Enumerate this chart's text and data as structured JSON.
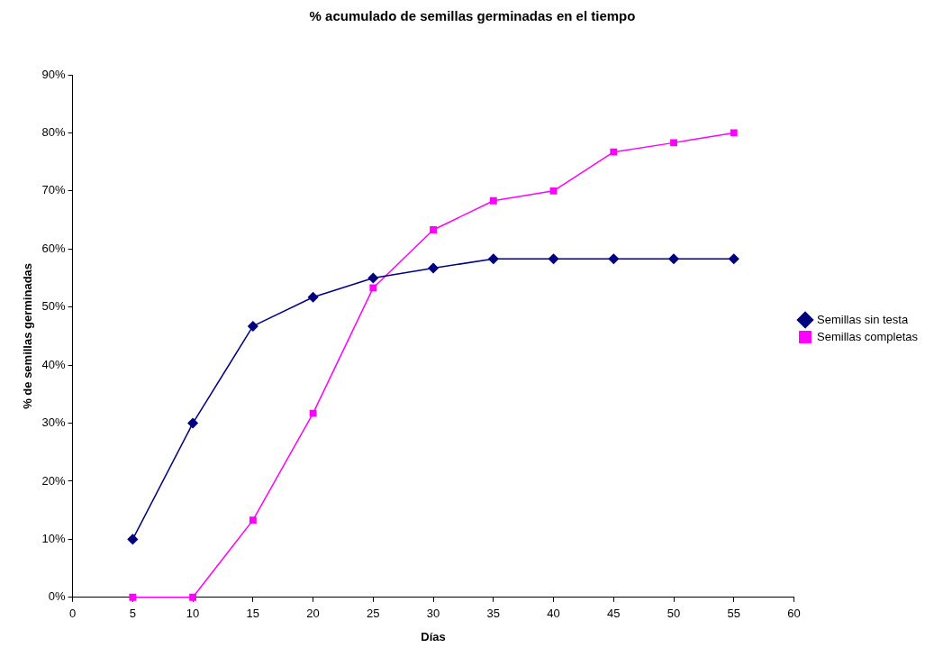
{
  "chart_data": {
    "type": "line",
    "title": "% acumulado de semillas germinadas en el tiempo",
    "xlabel": "Días",
    "ylabel": "% de semillas germinadas",
    "x": [
      5,
      10,
      15,
      20,
      25,
      30,
      35,
      40,
      45,
      50,
      55
    ],
    "series": [
      {
        "name": "Semillas sin testa",
        "color": "#000080",
        "marker": "diamond",
        "values": [
          10,
          30,
          46.7,
          51.7,
          55,
          56.7,
          58.3,
          58.3,
          58.3,
          58.3,
          58.3
        ]
      },
      {
        "name": "Semillas completas",
        "color": "#ff00ff",
        "marker": "square",
        "values": [
          0,
          0,
          13.3,
          31.7,
          53.3,
          63.3,
          68.3,
          70,
          76.7,
          78.3,
          80
        ]
      }
    ],
    "xlim": [
      0,
      60
    ],
    "xticks": [
      0,
      5,
      10,
      15,
      20,
      25,
      30,
      35,
      40,
      45,
      50,
      55,
      60
    ],
    "ylim": [
      0,
      90
    ],
    "yticks": [
      {
        "value": 0,
        "label": "0%"
      },
      {
        "value": 10,
        "label": "10%"
      },
      {
        "value": 20,
        "label": "20%"
      },
      {
        "value": 30,
        "label": "30%"
      },
      {
        "value": 40,
        "label": "40%"
      },
      {
        "value": 50,
        "label": "50%"
      },
      {
        "value": 60,
        "label": "60%"
      },
      {
        "value": 70,
        "label": "70%"
      },
      {
        "value": 80,
        "label": "80%"
      },
      {
        "value": 90,
        "label": "90%"
      }
    ],
    "grid": false,
    "legend": "right",
    "line_style": "solid"
  }
}
